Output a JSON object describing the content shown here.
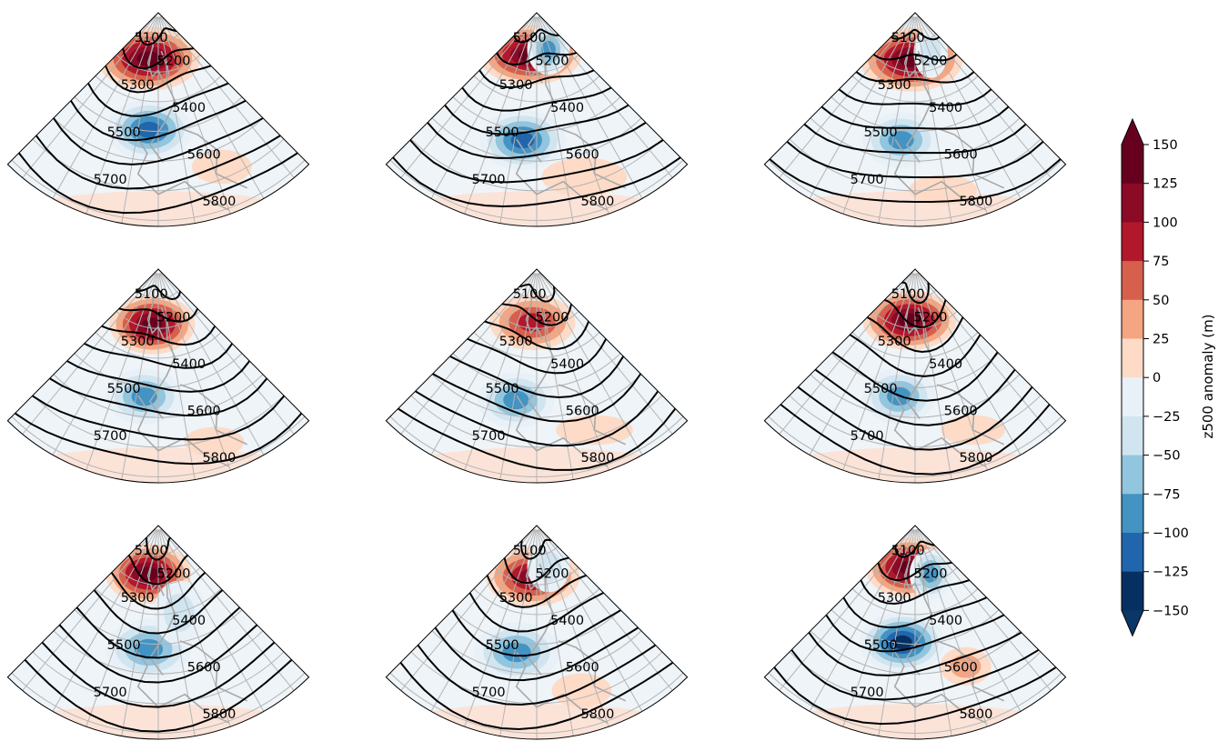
{
  "figure": {
    "panel_count": 9,
    "grid": "3x3",
    "projection": "polar-sector (North Atlantic / Europe)",
    "coastline_color": "#a8a8a8",
    "graticule_color": "#b4b4b4",
    "contour_color": "#000000"
  },
  "colorbar": {
    "label": "z500 anomaly (m)",
    "extend": "both",
    "levels": [
      "150",
      "125",
      "100",
      "75",
      "50",
      "25",
      "0",
      "−25",
      "−50",
      "−75",
      "−100",
      "−125",
      "−150"
    ],
    "colors": [
      "#67001f",
      "#8b0a26",
      "#b2182b",
      "#d6604d",
      "#f4a582",
      "#fddbc7",
      "#f7f7f7",
      "#e8f1f7",
      "#d1e5f0",
      "#92c5de",
      "#4393c3",
      "#2166ac",
      "#053061"
    ],
    "over_color": "#67001f",
    "under_color": "#0b3668"
  },
  "panels": [
    {
      "labels": [
        "5100",
        "5200",
        "5300",
        "5400",
        "5500",
        "5600",
        "5700",
        "5800"
      ],
      "anomalies": [
        {
          "sign": "pos",
          "value": 140,
          "u": 0.37,
          "v": 0.22,
          "rx": 0.24,
          "ry": 0.15
        },
        {
          "sign": "neg",
          "value": -120,
          "u": 0.45,
          "v": 0.55,
          "rx": 0.2,
          "ry": 0.14
        },
        {
          "sign": "pos",
          "value": 30,
          "u": 0.75,
          "v": 0.78,
          "rx": 0.14,
          "ry": 0.08
        }
      ]
    },
    {
      "labels": [
        "5100",
        "5200",
        "5300",
        "5400",
        "5500",
        "5600",
        "5700",
        "5800"
      ],
      "anomalies": [
        {
          "sign": "pos",
          "value": 150,
          "u": 0.4,
          "v": 0.2,
          "rx": 0.24,
          "ry": 0.14
        },
        {
          "sign": "neg",
          "value": -100,
          "u": 0.7,
          "v": 0.18,
          "rx": 0.1,
          "ry": 0.12
        },
        {
          "sign": "neg",
          "value": -120,
          "u": 0.43,
          "v": 0.6,
          "rx": 0.2,
          "ry": 0.14
        },
        {
          "sign": "pos",
          "value": 30,
          "u": 0.68,
          "v": 0.8,
          "rx": 0.2,
          "ry": 0.09
        }
      ]
    },
    {
      "labels": [
        "5100",
        "5200",
        "5300",
        "5400",
        "5500",
        "5600",
        "5700",
        "5800"
      ],
      "anomalies": [
        {
          "sign": "pos",
          "value": 150,
          "u": 0.45,
          "v": 0.22,
          "rx": 0.24,
          "ry": 0.15
        },
        {
          "sign": "neg",
          "value": -60,
          "u": 0.74,
          "v": 0.2,
          "rx": 0.08,
          "ry": 0.12
        },
        {
          "sign": "neg",
          "value": -110,
          "u": 0.43,
          "v": 0.6,
          "rx": 0.18,
          "ry": 0.13
        },
        {
          "sign": "pos",
          "value": 30,
          "u": 0.6,
          "v": 0.84,
          "rx": 0.16,
          "ry": 0.07
        }
      ]
    },
    {
      "labels": [
        "5100",
        "5200",
        "5300",
        "5400",
        "5500",
        "5600",
        "5700",
        "5800"
      ],
      "anomalies": [
        {
          "sign": "pos",
          "value": 150,
          "u": 0.43,
          "v": 0.26,
          "rx": 0.2,
          "ry": 0.14
        },
        {
          "sign": "neg",
          "value": -100,
          "u": 0.43,
          "v": 0.6,
          "rx": 0.18,
          "ry": 0.13
        },
        {
          "sign": "pos",
          "value": 30,
          "u": 0.7,
          "v": 0.85,
          "rx": 0.14,
          "ry": 0.07
        }
      ]
    },
    {
      "labels": [
        "5100",
        "5200",
        "5300",
        "5400",
        "5500",
        "5600",
        "5700",
        "5800"
      ],
      "anomalies": [
        {
          "sign": "pos",
          "value": 110,
          "u": 0.45,
          "v": 0.25,
          "rx": 0.2,
          "ry": 0.13
        },
        {
          "sign": "neg",
          "value": -110,
          "u": 0.4,
          "v": 0.62,
          "rx": 0.18,
          "ry": 0.13
        },
        {
          "sign": "pos",
          "value": 25,
          "u": 0.72,
          "v": 0.8,
          "rx": 0.18,
          "ry": 0.07
        }
      ]
    },
    {
      "labels": [
        "5100",
        "5200",
        "5300",
        "5400",
        "5500",
        "5600",
        "5700",
        "5800"
      ],
      "anomalies": [
        {
          "sign": "pos",
          "value": 140,
          "u": 0.43,
          "v": 0.24,
          "rx": 0.22,
          "ry": 0.14
        },
        {
          "sign": "neg",
          "value": -100,
          "u": 0.42,
          "v": 0.6,
          "rx": 0.17,
          "ry": 0.13
        },
        {
          "sign": "pos",
          "value": 30,
          "u": 0.72,
          "v": 0.8,
          "rx": 0.15,
          "ry": 0.07
        }
      ]
    },
    {
      "labels": [
        "5100",
        "5200",
        "5300",
        "5400",
        "5500",
        "5600",
        "5700",
        "5800"
      ],
      "anomalies": [
        {
          "sign": "pos",
          "value": 140,
          "u": 0.37,
          "v": 0.23,
          "rx": 0.2,
          "ry": 0.14
        },
        {
          "sign": "neg",
          "value": -100,
          "u": 0.45,
          "v": 0.58,
          "rx": 0.2,
          "ry": 0.14
        },
        {
          "sign": "neg",
          "value": -40,
          "u": 0.65,
          "v": 0.42,
          "rx": 0.12,
          "ry": 0.15
        }
      ]
    },
    {
      "labels": [
        "5100",
        "5200",
        "5300",
        "5400",
        "5500",
        "5600",
        "5700",
        "5800"
      ],
      "anomalies": [
        {
          "sign": "pos",
          "value": 130,
          "u": 0.45,
          "v": 0.24,
          "rx": 0.22,
          "ry": 0.14
        },
        {
          "sign": "neg",
          "value": -60,
          "u": 0.68,
          "v": 0.2,
          "rx": 0.1,
          "ry": 0.12
        },
        {
          "sign": "neg",
          "value": -110,
          "u": 0.4,
          "v": 0.6,
          "rx": 0.2,
          "ry": 0.14
        },
        {
          "sign": "pos",
          "value": 30,
          "u": 0.67,
          "v": 0.8,
          "rx": 0.14,
          "ry": 0.08
        }
      ]
    },
    {
      "labels": [
        "5100",
        "5200",
        "5300",
        "5400",
        "5500",
        "5600",
        "5700",
        "5800"
      ],
      "anomalies": [
        {
          "sign": "pos",
          "value": 150,
          "u": 0.4,
          "v": 0.2,
          "rx": 0.2,
          "ry": 0.14
        },
        {
          "sign": "neg",
          "value": -100,
          "u": 0.7,
          "v": 0.24,
          "rx": 0.1,
          "ry": 0.12
        },
        {
          "sign": "neg",
          "value": -140,
          "u": 0.43,
          "v": 0.55,
          "rx": 0.2,
          "ry": 0.14
        },
        {
          "sign": "pos",
          "value": 60,
          "u": 0.72,
          "v": 0.7,
          "rx": 0.12,
          "ry": 0.09
        }
      ]
    }
  ]
}
